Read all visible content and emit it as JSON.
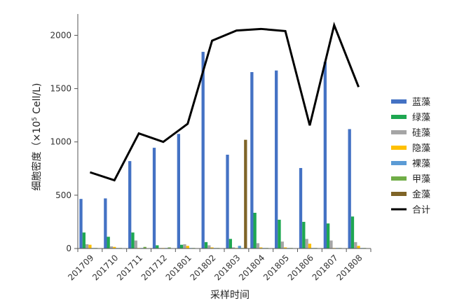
{
  "chart_data": {
    "type": "bar",
    "categories": [
      "201709",
      "201710",
      "201711",
      "201712",
      "201801",
      "201802",
      "201803",
      "201804",
      "201805",
      "201806",
      "201807",
      "201808"
    ],
    "ylabel_main": "细胞密度（×10",
    "ylabel_sup": "5",
    "ylabel_tail": " Cell/L)",
    "xlabel": "采样时间",
    "ylim": [
      0,
      2200
    ],
    "yticks": [
      0,
      500,
      1000,
      1500,
      2000
    ],
    "grid": false,
    "legend_position": "right",
    "series": [
      {
        "name": "蓝藻",
        "color": "#4472C4",
        "values": [
          465,
          470,
          820,
          945,
          1075,
          1845,
          880,
          1655,
          1670,
          755,
          1750,
          1120
        ]
      },
      {
        "name": "绿藻",
        "color": "#1EA751",
        "values": [
          150,
          110,
          150,
          30,
          35,
          60,
          90,
          335,
          270,
          250,
          235,
          300
        ]
      },
      {
        "name": "硅藻",
        "color": "#A5A5A5",
        "values": [
          40,
          20,
          75,
          5,
          40,
          30,
          10,
          50,
          65,
          90,
          75,
          60
        ]
      },
      {
        "name": "隐藻",
        "color": "#FFC000",
        "values": [
          35,
          15,
          5,
          5,
          25,
          10,
          5,
          10,
          10,
          45,
          5,
          25
        ]
      },
      {
        "name": "裸藻",
        "color": "#5B9BD5",
        "values": [
          5,
          5,
          5,
          5,
          5,
          5,
          25,
          5,
          5,
          5,
          5,
          5
        ]
      },
      {
        "name": "甲藻",
        "color": "#70AD47",
        "values": [
          5,
          5,
          15,
          10,
          5,
          5,
          5,
          5,
          5,
          5,
          5,
          5
        ]
      },
      {
        "name": "金藻",
        "color": "#7F6427",
        "values": [
          0,
          0,
          0,
          0,
          0,
          0,
          1020,
          0,
          0,
          0,
          0,
          0
        ]
      }
    ],
    "line_series": {
      "name": "合计",
      "color": "#000000",
      "values": [
        715,
        640,
        1080,
        1000,
        1170,
        1950,
        2045,
        2060,
        2040,
        1155,
        2095,
        1515
      ]
    }
  }
}
